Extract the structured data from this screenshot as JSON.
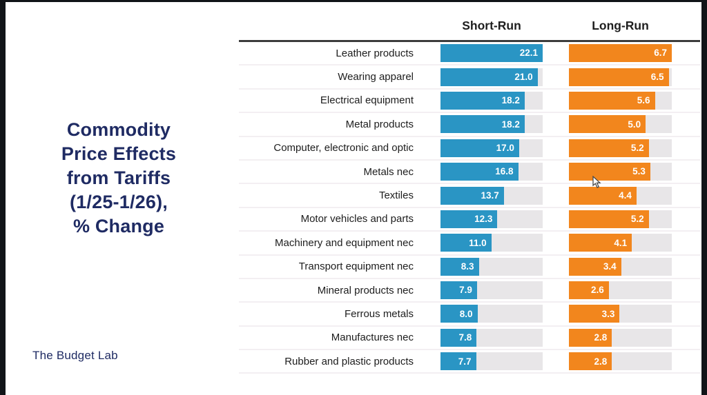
{
  "title": "Commodity\nPrice Effects\nfrom Tariffs\n(1/25-1/26),\n% Change",
  "footer": "The Budget Lab",
  "colors": {
    "short_run_blue": "#2a95c4",
    "long_run_orange": "#f2861d",
    "title_navy": "#1f2b63",
    "bar_track_gray": "#e8e6e8",
    "header_rule": "#3c3c3c",
    "row_separator": "#f3eff2"
  },
  "chart_data": {
    "type": "bar",
    "orientation": "horizontal",
    "title": "Commodity Price Effects from Tariffs (1/25-1/26), % Change",
    "value_unit": "% change",
    "grid": false,
    "legend_position": "column-headers",
    "columns": [
      {
        "name": "Short-Run",
        "max": 22.1,
        "color": "#2a95c4"
      },
      {
        "name": "Long-Run",
        "max": 6.7,
        "color": "#f2861d"
      }
    ],
    "categories": [
      "Leather products",
      "Wearing apparel",
      "Electrical equipment",
      "Metal products",
      "Computer, electronic and optic",
      "Metals nec",
      "Textiles",
      "Motor vehicles and parts",
      "Machinery and equipment nec",
      "Transport equipment nec",
      "Mineral products nec",
      "Ferrous metals",
      "Manufactures nec",
      "Rubber and plastic products"
    ],
    "series": [
      {
        "name": "Short-Run",
        "values": [
          22.1,
          21.0,
          18.2,
          18.2,
          17.0,
          16.8,
          13.7,
          12.3,
          11.0,
          8.3,
          7.9,
          8.0,
          7.8,
          7.7
        ]
      },
      {
        "name": "Long-Run",
        "values": [
          6.7,
          6.5,
          5.6,
          5.0,
          5.2,
          5.3,
          4.4,
          5.2,
          4.1,
          3.4,
          2.6,
          3.3,
          2.8,
          2.8
        ]
      }
    ]
  }
}
